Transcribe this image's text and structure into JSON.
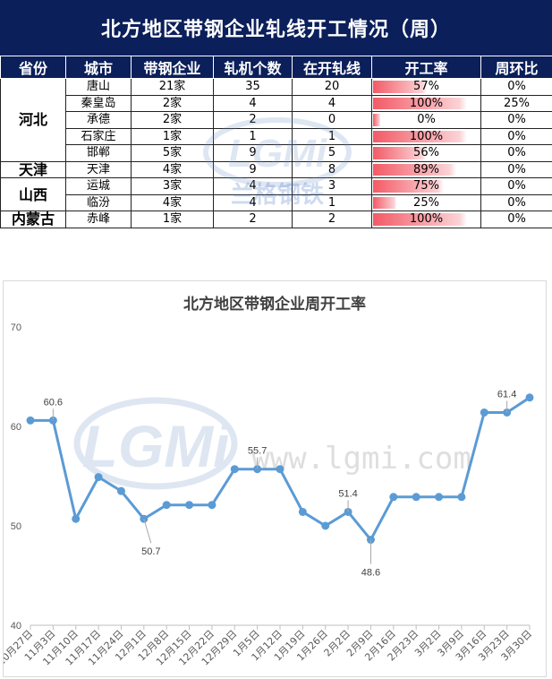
{
  "table": {
    "title": "北方地区带钢企业轧线开工情况（周）",
    "headers": [
      "省份",
      "城市",
      "带钢企业",
      "轧机个数",
      "在开轧线",
      "开工率",
      "周环比"
    ],
    "provinces": [
      {
        "name": "河北",
        "rows": 5
      },
      {
        "name": "天津",
        "rows": 1
      },
      {
        "name": "山西",
        "rows": 2
      },
      {
        "name": "内蒙古",
        "rows": 1
      }
    ],
    "rows": [
      {
        "city": "唐山",
        "companies": "21家",
        "mills": "35",
        "running": "20",
        "rate": "57%",
        "rate_value": 57,
        "wow": "0%"
      },
      {
        "city": "秦皇岛",
        "companies": "2家",
        "mills": "4",
        "running": "4",
        "rate": "100%",
        "rate_value": 100,
        "wow": "25%"
      },
      {
        "city": "承德",
        "companies": "2家",
        "mills": "2",
        "running": "0",
        "rate": "0%",
        "rate_value": 0,
        "wow": "0%"
      },
      {
        "city": "石家庄",
        "companies": "1家",
        "mills": "1",
        "running": "1",
        "rate": "100%",
        "rate_value": 100,
        "wow": "0%"
      },
      {
        "city": "邯郸",
        "companies": "5家",
        "mills": "9",
        "running": "5",
        "rate": "56%",
        "rate_value": 56,
        "wow": "0%"
      },
      {
        "city": "天津",
        "companies": "4家",
        "mills": "9",
        "running": "8",
        "rate": "89%",
        "rate_value": 89,
        "wow": "0%"
      },
      {
        "city": "运城",
        "companies": "3家",
        "mills": "4",
        "running": "3",
        "rate": "75%",
        "rate_value": 75,
        "wow": "0%"
      },
      {
        "city": "临汾",
        "companies": "4家",
        "mills": "4",
        "running": "1",
        "rate": "25%",
        "rate_value": 25,
        "wow": "0%"
      },
      {
        "city": "赤峰",
        "companies": "1家",
        "mills": "2",
        "running": "2",
        "rate": "100%",
        "rate_value": 100,
        "wow": "0%"
      }
    ]
  },
  "watermark": {
    "logo": "LGMi",
    "brand_cn": "兰格钢铁",
    "url": "www.lgmi.com"
  },
  "colors": {
    "header_bg": "#0b1f5a",
    "line": "#5b9bd5",
    "bar": "#f25a66"
  },
  "chart_data": {
    "type": "line",
    "title": "北方地区带钢企业周开工率",
    "xlabel": "",
    "ylabel": "",
    "ylim": [
      40,
      70
    ],
    "yticks": [
      40,
      50,
      60,
      70
    ],
    "grid": false,
    "legend": "none",
    "x": [
      "10月27日",
      "11月3日",
      "11月10日",
      "11月17日",
      "11月24日",
      "12月1日",
      "12月8日",
      "12月15日",
      "12月22日",
      "12月29日",
      "1月5日",
      "1月12日",
      "1月19日",
      "1月26日",
      "2月2日",
      "2月9日",
      "2月16日",
      "2月23日",
      "3月2日",
      "3月9日",
      "3月16日",
      "3月23日",
      "3月30日"
    ],
    "series": [
      {
        "values": [
          60.6,
          60.6,
          50.7,
          54.9,
          53.5,
          50.7,
          52.1,
          52.1,
          52.1,
          55.7,
          55.7,
          55.7,
          51.4,
          50.0,
          51.4,
          48.6,
          52.9,
          52.9,
          52.9,
          52.9,
          61.4,
          61.4,
          62.9
        ]
      }
    ],
    "data_labels": [
      {
        "index": 1,
        "text": "60.6"
      },
      {
        "index": 5,
        "text": "50.7"
      },
      {
        "index": 10,
        "text": "55.7"
      },
      {
        "index": 14,
        "text": "51.4"
      },
      {
        "index": 15,
        "text": "48.6"
      },
      {
        "index": 21,
        "text": "61.4"
      }
    ]
  }
}
